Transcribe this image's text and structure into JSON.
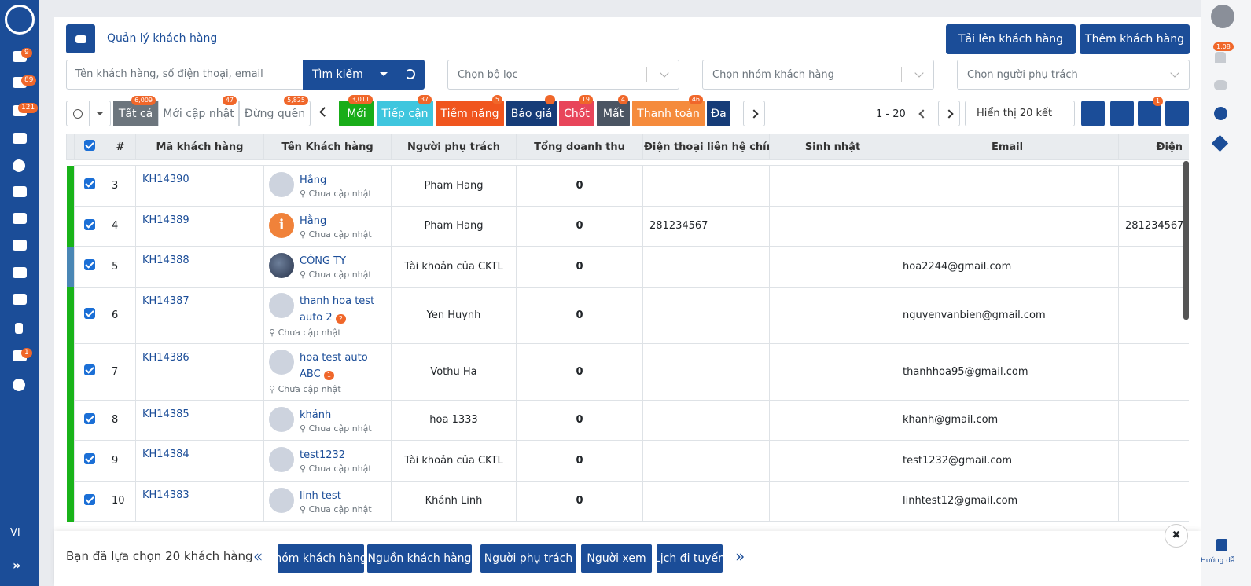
{
  "sidebar": {
    "badges": [
      "9",
      "89",
      "121",
      "1"
    ],
    "language": "VI"
  },
  "header": {
    "title": "Quản lý khách hàng",
    "buttons": [
      "Tải lên khách hàng",
      "Thêm khách hàng"
    ]
  },
  "search": {
    "placeholder": "Tên khách hàng, số điện thoại, email",
    "button": "Tìm kiếm"
  },
  "filters": [
    "Chọn bộ lọc",
    "Chọn nhóm khách hàng",
    "Chọn người phụ trách"
  ],
  "tabs": [
    {
      "label": "Tất cả",
      "count": "6,009"
    },
    {
      "label": "Mới cập nhật",
      "count": "47"
    },
    {
      "label": "Đừng quên",
      "count": "5,825"
    }
  ],
  "stages": [
    {
      "label": "Mới",
      "count": "3,011",
      "color": "#19ad19"
    },
    {
      "label": "Tiếp cận",
      "count": "37",
      "color": "#3fc6de"
    },
    {
      "label": "Tiềm năng",
      "count": "5",
      "color": "#f0551e"
    },
    {
      "label": "Báo giá",
      "count": "1",
      "color": "#163c78"
    },
    {
      "label": "Chốt",
      "count": "19",
      "color": "#e8455a"
    },
    {
      "label": "Mất",
      "count": "4",
      "color": "#4b5563"
    },
    {
      "label": "Thanh toán",
      "count": "46",
      "color": "#f58b3c"
    },
    {
      "label": "Đa",
      "color": "#163c78"
    }
  ],
  "pager": {
    "range": "1 - 20",
    "display": "Hiển thị 20 kết",
    "badge": "1"
  },
  "table": {
    "columns": [
      "#",
      "Mã khách hàng",
      "Tên Khách hàng",
      "Người phụ trách",
      "Tổng doanh thu",
      "Điện thoại liên hệ chính",
      "Sinh nhật",
      "Email",
      "Điện"
    ],
    "rows": [
      {
        "no": "3",
        "code": "KH14390",
        "name": "Hằng",
        "location": "Chưa cập nhật",
        "owner": "Pham Hang",
        "revenue": "0",
        "avatar": "default",
        "status_color": "#19b319"
      },
      {
        "no": "4",
        "code": "KH14389",
        "name": "Hằng",
        "location": "Chưa cập nhật",
        "owner": "Pham Hang",
        "revenue": "0",
        "phone": "281234567",
        "phone2": "281234567",
        "avatar": "warning",
        "status_color": "#19b319"
      },
      {
        "no": "5",
        "code": "KH14388",
        "name": "CÔNG TY",
        "location": "Chưa cập nhật",
        "owner": "Tài khoản của CKTL",
        "revenue": "0",
        "email": "hoa2244@gmail.com",
        "avatar": "photo",
        "status_color": "#4a87b5"
      },
      {
        "no": "6",
        "code": "KH14387",
        "name": "thanh hoa test auto 2",
        "badge": "2",
        "location": "Chưa cập nhật",
        "owner": "Yen Huynh",
        "revenue": "0",
        "email": "nguyenvanbien@gmail.com",
        "avatar": "default",
        "status_color": "#19b319"
      },
      {
        "no": "7",
        "code": "KH14386",
        "name": "hoa test auto ABC",
        "badge": "1",
        "location": "Chưa cập nhật",
        "owner": "Vothu Ha",
        "revenue": "0",
        "email": "thanhhoa95@gmail.com",
        "avatar": "default",
        "status_color": "#19b319"
      },
      {
        "no": "8",
        "code": "KH14385",
        "name": "khánh",
        "location": "Chưa cập nhật",
        "owner": "hoa 1333",
        "revenue": "0",
        "email": "khanh@gmail.com",
        "avatar": "default",
        "status_color": "#19b319"
      },
      {
        "no": "9",
        "code": "KH14384",
        "name": "test1232",
        "location": "Chưa cập nhật",
        "owner": "Tài khoản của CKTL",
        "revenue": "0",
        "email": "test1232@gmail.com",
        "avatar": "default",
        "status_color": "#19b319"
      },
      {
        "no": "10",
        "code": "KH14383",
        "name": "linh test",
        "location": "Chưa cập nhật",
        "owner": "Khánh Linh",
        "revenue": "0",
        "email": "linhtest12@gmail.com",
        "avatar": "default",
        "status_color": "#19b319"
      }
    ]
  },
  "right_rail": {
    "badge": "1,08",
    "help": "Hướng dẫ"
  },
  "bottom_bar": {
    "message": "Bạn đã lựa chọn 20 khách hàng",
    "buttons": [
      "hóm khách hàng",
      "Nguồn khách hàng",
      "Người phụ trách",
      "Người xem",
      "Lịch đi tuyến"
    ]
  }
}
